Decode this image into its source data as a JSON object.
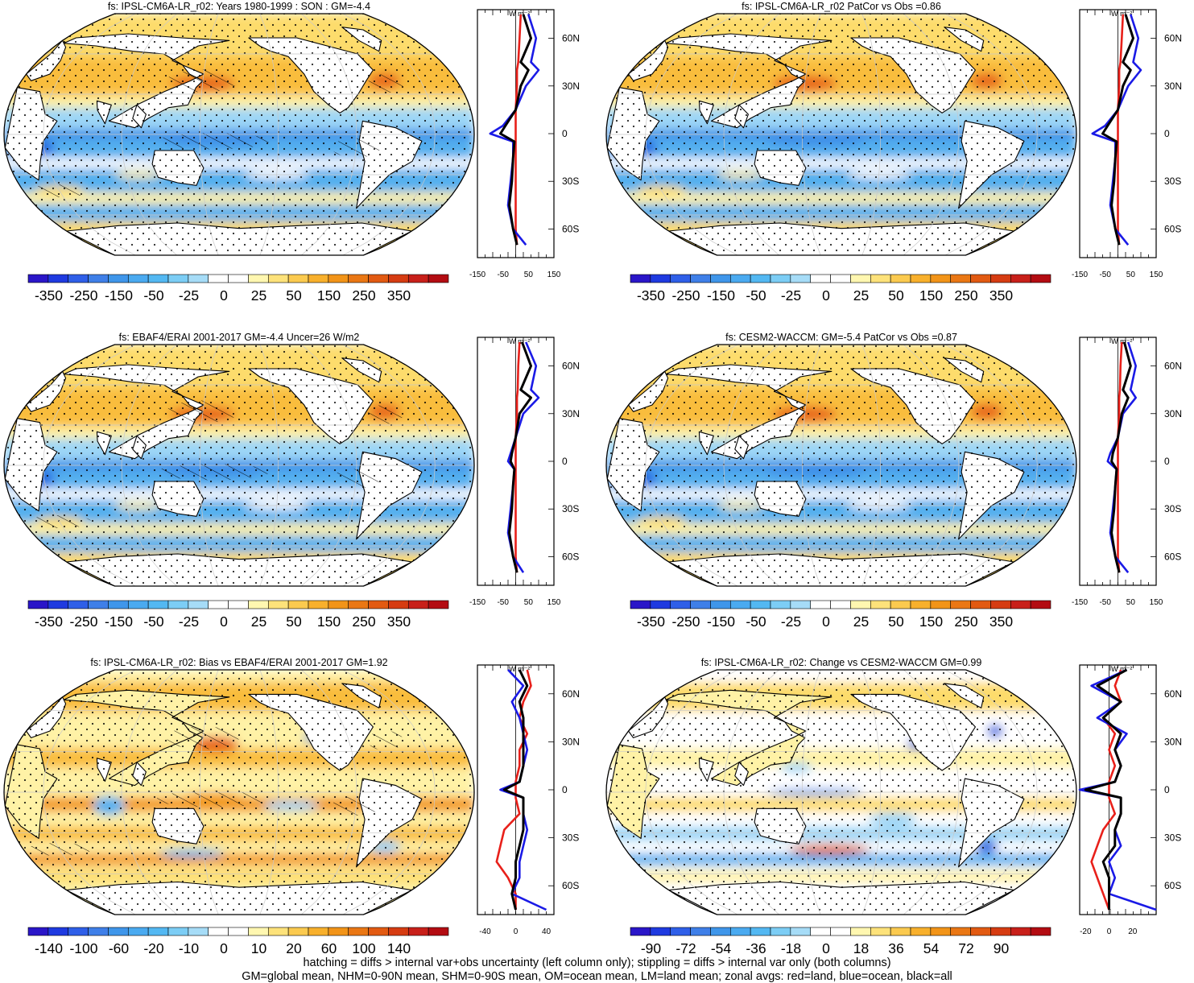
{
  "panels": [
    {
      "title": "fs: IPSL-CM6A-LR_r02: Years 1980-1999 : SON : GM=-4.4",
      "map_style": "model",
      "colorbar": {
        "labels": [
          "-350",
          "-250",
          "-150",
          "-50",
          "-25",
          "0",
          "25",
          "50",
          "150",
          "250",
          "350"
        ]
      },
      "zonal": {
        "xticks": [
          "-150",
          "-50",
          "50",
          "150"
        ],
        "xrange": [
          -150,
          150
        ]
      }
    },
    {
      "title": "fs: IPSL-CM6A-LR_r02 PatCor vs Obs =0.86",
      "map_style": "model_nohatch",
      "colorbar": {
        "labels": [
          "-350",
          "-250",
          "-150",
          "-50",
          "-25",
          "0",
          "25",
          "50",
          "150",
          "250",
          "350"
        ]
      },
      "zonal": {
        "xticks": [
          "-150",
          "-50",
          "50",
          "150"
        ],
        "xrange": [
          -150,
          150
        ]
      }
    },
    {
      "title": "fs: EBAF4/ERAI 2001-2017 GM=-4.4 Uncer=26 W/m2",
      "map_style": "obs",
      "colorbar": {
        "labels": [
          "-350",
          "-250",
          "-150",
          "-50",
          "-25",
          "0",
          "25",
          "50",
          "150",
          "250",
          "350"
        ]
      },
      "zonal": {
        "xticks": [
          "-150",
          "-50",
          "50",
          "150"
        ],
        "xrange": [
          -150,
          150
        ]
      }
    },
    {
      "title": "fs: CESM2-WACCM: GM=-5.4 PatCor vs Obs =0.87",
      "map_style": "model_nohatch",
      "colorbar": {
        "labels": [
          "-350",
          "-250",
          "-150",
          "-50",
          "-25",
          "0",
          "25",
          "50",
          "150",
          "250",
          "350"
        ]
      },
      "zonal": {
        "xticks": [
          "-150",
          "-50",
          "50",
          "150"
        ],
        "xrange": [
          -150,
          150
        ]
      }
    },
    {
      "title": "fs: IPSL-CM6A-LR_r02: Bias vs EBAF4/ERAI 2001-2017  GM=1.92",
      "map_style": "bias",
      "colorbar": {
        "labels": [
          "-140",
          "-100",
          "-60",
          "-20",
          "-10",
          "0",
          "10",
          "20",
          "60",
          "100",
          "140"
        ]
      },
      "zonal": {
        "xticks": [
          "-40",
          "0",
          "40"
        ],
        "xrange": [
          -50,
          50
        ]
      }
    },
    {
      "title": "fs: IPSL-CM6A-LR_r02: Change vs CESM2-WACCM GM=0.99",
      "map_style": "change",
      "colorbar": {
        "labels": [
          "-90",
          "-72",
          "-54",
          "-36",
          "-18",
          "0",
          "18",
          "36",
          "54",
          "72",
          "90"
        ]
      },
      "zonal": {
        "xticks": [
          "-20",
          "0",
          "20"
        ],
        "xrange": [
          -25,
          40
        ]
      }
    }
  ],
  "zonal_units": "W m⁻²",
  "lat_labels": [
    "60N",
    "30N",
    "0",
    "30S",
    "60S"
  ],
  "colorbar_colors": [
    "#2a16c8",
    "#1f3ae0",
    "#2f5fe8",
    "#3f7fe8",
    "#3f96ea",
    "#4aaaf0",
    "#53b8f2",
    "#7ccdf5",
    "#a6dcf7",
    "#ffffff",
    "#ffffff",
    "#fff7b0",
    "#fde27a",
    "#fbca4f",
    "#f8b02c",
    "#f29418",
    "#ea7714",
    "#e25a12",
    "#d63c12",
    "#c8201a",
    "#b30c12"
  ],
  "line_colors": {
    "land": "#e8201a",
    "ocean": "#1a1ae6",
    "all": "#000000"
  },
  "chart_data": [
    {
      "type": "heatmap",
      "title": "fs: IPSL-CM6A-LR_r02: Years 1980-1999 : SON : GM=-4.4",
      "zonal_profile": {
        "lat": [
          75,
          60,
          45,
          40,
          30,
          15,
          5,
          0,
          -5,
          -15,
          -30,
          -45,
          -60,
          -70
        ],
        "ocean": [
          50,
          80,
          60,
          90,
          40,
          0,
          -50,
          -100,
          -10,
          -10,
          -20,
          -30,
          -10,
          40
        ],
        "land": [
          20,
          15,
          10,
          5,
          5,
          0,
          0,
          0,
          0,
          0,
          0,
          0,
          0,
          5
        ],
        "all": [
          30,
          60,
          20,
          50,
          20,
          0,
          -40,
          -60,
          -5,
          -10,
          -15,
          -25,
          -10,
          5
        ]
      }
    },
    {
      "type": "heatmap",
      "title": "fs: IPSL-CM6A-LR_r02 PatCor vs Obs =0.86",
      "zonal_profile": {
        "lat": [
          75,
          60,
          45,
          40,
          30,
          15,
          5,
          0,
          -5,
          -15,
          -30,
          -45,
          -60,
          -70
        ],
        "ocean": [
          50,
          80,
          60,
          90,
          40,
          0,
          -50,
          -100,
          -10,
          -10,
          -20,
          -30,
          -10,
          40
        ],
        "land": [
          20,
          15,
          10,
          5,
          5,
          0,
          0,
          0,
          0,
          0,
          0,
          0,
          0,
          5
        ],
        "all": [
          30,
          60,
          20,
          50,
          20,
          0,
          -40,
          -60,
          -5,
          -10,
          -15,
          -25,
          -10,
          5
        ]
      }
    },
    {
      "type": "heatmap",
      "title": "fs: EBAF4/ERAI 2001-2017 GM=-4.4 Uncer=26 W/m2",
      "zonal_profile": {
        "lat": [
          75,
          60,
          45,
          40,
          30,
          15,
          5,
          0,
          -5,
          -15,
          -30,
          -45,
          -60,
          -70
        ],
        "ocean": [
          40,
          80,
          60,
          90,
          30,
          0,
          -20,
          -30,
          -5,
          -10,
          -20,
          -30,
          -10,
          30
        ],
        "land": [
          15,
          10,
          8,
          5,
          5,
          0,
          0,
          0,
          0,
          0,
          0,
          0,
          0,
          5
        ],
        "all": [
          25,
          60,
          20,
          60,
          15,
          0,
          -15,
          -20,
          -5,
          -10,
          -15,
          -25,
          -10,
          5
        ]
      }
    },
    {
      "type": "heatmap",
      "title": "fs: CESM2-WACCM: GM=-5.4 PatCor vs Obs =0.87",
      "zonal_profile": {
        "lat": [
          75,
          60,
          45,
          40,
          30,
          15,
          5,
          0,
          -5,
          -15,
          -30,
          -45,
          -60,
          -70
        ],
        "ocean": [
          40,
          70,
          50,
          70,
          20,
          0,
          -30,
          -40,
          -5,
          -10,
          -20,
          -30,
          -10,
          40
        ],
        "land": [
          15,
          10,
          8,
          5,
          5,
          0,
          0,
          0,
          0,
          0,
          0,
          0,
          0,
          5
        ],
        "all": [
          25,
          50,
          20,
          40,
          15,
          0,
          -20,
          -25,
          -5,
          -10,
          -15,
          -25,
          -10,
          5
        ]
      }
    },
    {
      "type": "heatmap",
      "title": "fs: IPSL-CM6A-LR_r02: Bias vs EBAF4/ERAI 2001-2017  GM=1.92",
      "zonal_profile": {
        "lat": [
          75,
          65,
          55,
          45,
          35,
          25,
          15,
          5,
          0,
          -5,
          -15,
          -25,
          -35,
          -45,
          -55,
          -65,
          -75
        ],
        "ocean": [
          -10,
          10,
          -5,
          5,
          10,
          15,
          10,
          5,
          -20,
          10,
          10,
          15,
          10,
          5,
          5,
          -5,
          40
        ],
        "land": [
          15,
          20,
          10,
          5,
          15,
          5,
          5,
          0,
          0,
          0,
          5,
          -15,
          -20,
          -25,
          -10,
          0,
          0
        ],
        "all": [
          5,
          15,
          5,
          10,
          10,
          10,
          10,
          5,
          -15,
          10,
          10,
          10,
          5,
          0,
          0,
          -5,
          0
        ]
      }
    },
    {
      "type": "heatmap",
      "title": "fs: IPSL-CM6A-LR_r02: Change vs CESM2-WACCM GM=0.99",
      "zonal_profile": {
        "lat": [
          75,
          65,
          55,
          45,
          35,
          25,
          15,
          5,
          0,
          -5,
          -15,
          -25,
          -35,
          -45,
          -55,
          -65,
          -75
        ],
        "ocean": [
          15,
          -15,
          10,
          -10,
          15,
          5,
          10,
          5,
          -25,
          10,
          10,
          5,
          10,
          0,
          5,
          0,
          55
        ],
        "land": [
          10,
          5,
          10,
          -5,
          5,
          0,
          5,
          0,
          0,
          0,
          5,
          -5,
          -10,
          -15,
          -10,
          -5,
          0
        ],
        "all": [
          15,
          -10,
          10,
          -5,
          10,
          5,
          10,
          5,
          -20,
          10,
          10,
          5,
          5,
          -5,
          0,
          0,
          0
        ]
      }
    }
  ],
  "footer": {
    "line1": "hatching = diffs > internal var+obs uncertainty (left column only); stippling = diffs > internal var only (both columns)",
    "line2": "GM=global mean, NHM=0-90N mean, SHM=0-90S mean, OM=ocean mean, LM=land mean; zonal avgs: red=land, blue=ocean, black=all"
  }
}
